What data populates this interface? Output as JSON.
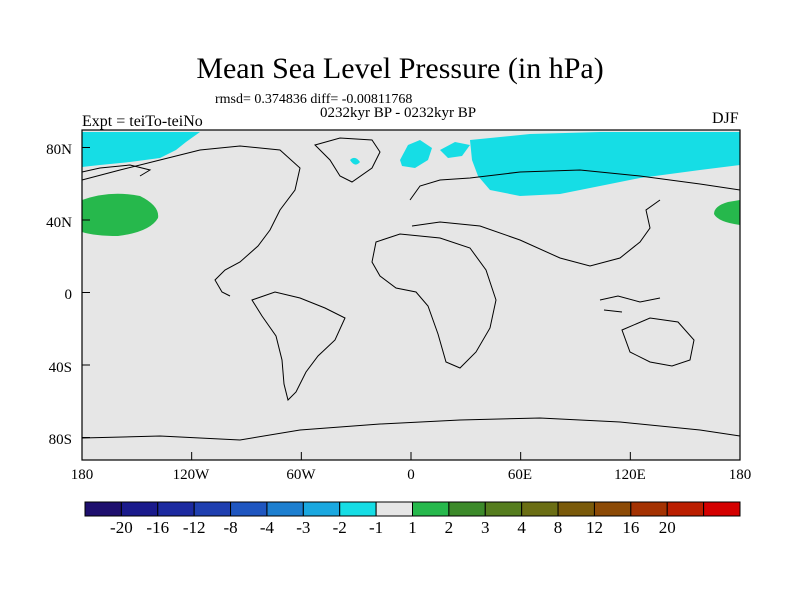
{
  "title": "Mean Sea Level Pressure (in hPa)",
  "stats": "rmsd= 0.374836 diff= -0.00811768",
  "period": "0232kyr BP - 0232kyr BP",
  "experiment": "Expt = teiTo-teiNo",
  "season": "DJF",
  "lat_labels": [
    "80N",
    "40N",
    "0",
    "40S",
    "80S"
  ],
  "lon_labels": [
    "180",
    "120W",
    "60W",
    "0",
    "60E",
    "120E",
    "180"
  ],
  "colorbar": {
    "colors": [
      "#1e0f6e",
      "#1a1a8c",
      "#1c2aa0",
      "#1f3fb0",
      "#1f56c0",
      "#1d7fd0",
      "#1aa8e0",
      "#16dde5",
      "#e6e6e6",
      "#26b84c",
      "#3c8a2a",
      "#557d1e",
      "#6b6e14",
      "#7a5a0a",
      "#8c4a06",
      "#a43202",
      "#bb1e00",
      "#d40000"
    ],
    "labels": [
      "-20",
      "-16",
      "-12",
      "-8",
      "-4",
      "-3",
      "-2",
      "-1",
      "1",
      "2",
      "3",
      "4",
      "8",
      "12",
      "16",
      "20"
    ]
  },
  "map_colors": {
    "neutral": "#e6e6e6",
    "negative": "#16dde5",
    "positive": "#26b84c",
    "coast": "#000000"
  }
}
